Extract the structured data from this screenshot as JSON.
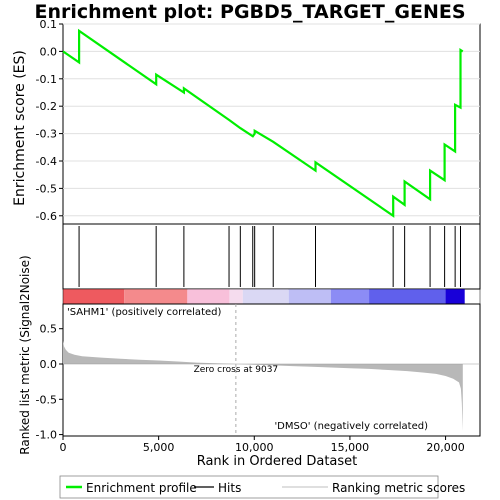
{
  "chart_data": {
    "type": "line",
    "title": "Enrichment plot: PGBD5_TARGET_GENES",
    "xlabel": "Rank in Ordered Dataset",
    "es_panel": {
      "ylabel": "Enrichment score (ES)",
      "ylim": [
        -0.63,
        0.1
      ],
      "yticks": [
        "0.1",
        "0.0",
        "-0.1",
        "-0.2",
        "-0.3",
        "-0.4",
        "-0.5",
        "-0.6"
      ],
      "ytick_values": [
        0.1,
        0.0,
        -0.1,
        -0.2,
        -0.3,
        -0.4,
        -0.5,
        -0.6
      ],
      "grid": true,
      "line_color": "#00ee00",
      "series": [
        {
          "name": "Enrichment profile",
          "x": [
            0,
            840,
            840,
            4870,
            4870,
            6320,
            6320,
            8680,
            9270,
            9920,
            10020,
            10020,
            10990,
            13200,
            13200,
            17260,
            17260,
            17860,
            17860,
            19190,
            19190,
            19950,
            19950,
            20500,
            20500,
            20780,
            20780,
            20900
          ],
          "y": [
            0.0,
            -0.04,
            0.075,
            -0.12,
            -0.085,
            -0.15,
            -0.135,
            -0.25,
            -0.28,
            -0.31,
            -0.3,
            -0.29,
            -0.33,
            -0.435,
            -0.405,
            -0.6,
            -0.53,
            -0.56,
            -0.475,
            -0.54,
            -0.435,
            -0.47,
            -0.34,
            -0.365,
            -0.195,
            -0.205,
            0.005,
            0.0
          ]
        }
      ]
    },
    "hits": {
      "name": "Hits",
      "positions": [
        840,
        4870,
        6320,
        8680,
        9270,
        9920,
        10020,
        10990,
        13200,
        17260,
        17860,
        19190,
        19950,
        20500,
        20780
      ]
    },
    "rank_colorbar": {
      "segments": [
        {
          "from": 0,
          "to": 3200,
          "color": "#ee5a5f"
        },
        {
          "from": 3200,
          "to": 6500,
          "color": "#f48a8c"
        },
        {
          "from": 6500,
          "to": 8700,
          "color": "#f8c0da"
        },
        {
          "from": 8700,
          "to": 9400,
          "color": "#f5dcee"
        },
        {
          "from": 9400,
          "to": 11800,
          "color": "#dad8f4"
        },
        {
          "from": 11800,
          "to": 14000,
          "color": "#bebef5"
        },
        {
          "from": 14000,
          "to": 16000,
          "color": "#8c8cf5"
        },
        {
          "from": 16000,
          "to": 20000,
          "color": "#6060ec"
        },
        {
          "from": 20000,
          "to": 21000,
          "color": "#1800d8"
        }
      ],
      "label_pos": "'SAHM1' (positively correlated)",
      "label_neg": "'DMSO' (negatively correlated)",
      "pos_color": "#dd0000",
      "neg_color": "#0000cc"
    },
    "metric_panel": {
      "ylabel": "Ranked list metric (Signal2Noise)",
      "ylim": [
        -1.02,
        0.85
      ],
      "yticks": [
        "0.5",
        "0.0",
        "-0.5",
        "-1.0"
      ],
      "ytick_values": [
        0.5,
        0.0,
        -0.5,
        -1.0
      ],
      "fill_color": "#b8b8b8",
      "zero_cross": 9037,
      "zero_cross_label": "Zero cross at 9037",
      "x": [
        0,
        50,
        150,
        300,
        600,
        1000,
        2000,
        3000,
        4000,
        5000,
        6000,
        7000,
        8000,
        9037,
        10000,
        11000,
        12000,
        13000,
        14000,
        15000,
        16000,
        17000,
        18000,
        18800,
        19500,
        20000,
        20400,
        20700,
        20800,
        20850,
        20900
      ],
      "values": [
        0.33,
        0.25,
        0.2,
        0.16,
        0.13,
        0.11,
        0.09,
        0.075,
        0.06,
        0.05,
        0.035,
        0.02,
        0.01,
        0.0,
        -0.01,
        -0.02,
        -0.03,
        -0.04,
        -0.05,
        -0.06,
        -0.07,
        -0.085,
        -0.1,
        -0.12,
        -0.14,
        -0.17,
        -0.21,
        -0.26,
        -0.35,
        -0.55,
        -0.95
      ]
    },
    "xaxis": {
      "xlim": [
        0,
        21800
      ],
      "xticks": [
        "0",
        "5,000",
        "10,000",
        "15,000",
        "20,000"
      ],
      "xtick_values": [
        0,
        5000,
        10000,
        15000,
        20000
      ]
    },
    "legend": {
      "placement": "bottom",
      "entries": [
        {
          "label": "Enrichment profile",
          "color": "#00ee00",
          "style": "thick"
        },
        {
          "label": "Hits",
          "color": "#000000",
          "style": "thin"
        },
        {
          "label": "Ranking metric scores",
          "color": "#cccccc",
          "style": "thin"
        }
      ]
    }
  }
}
